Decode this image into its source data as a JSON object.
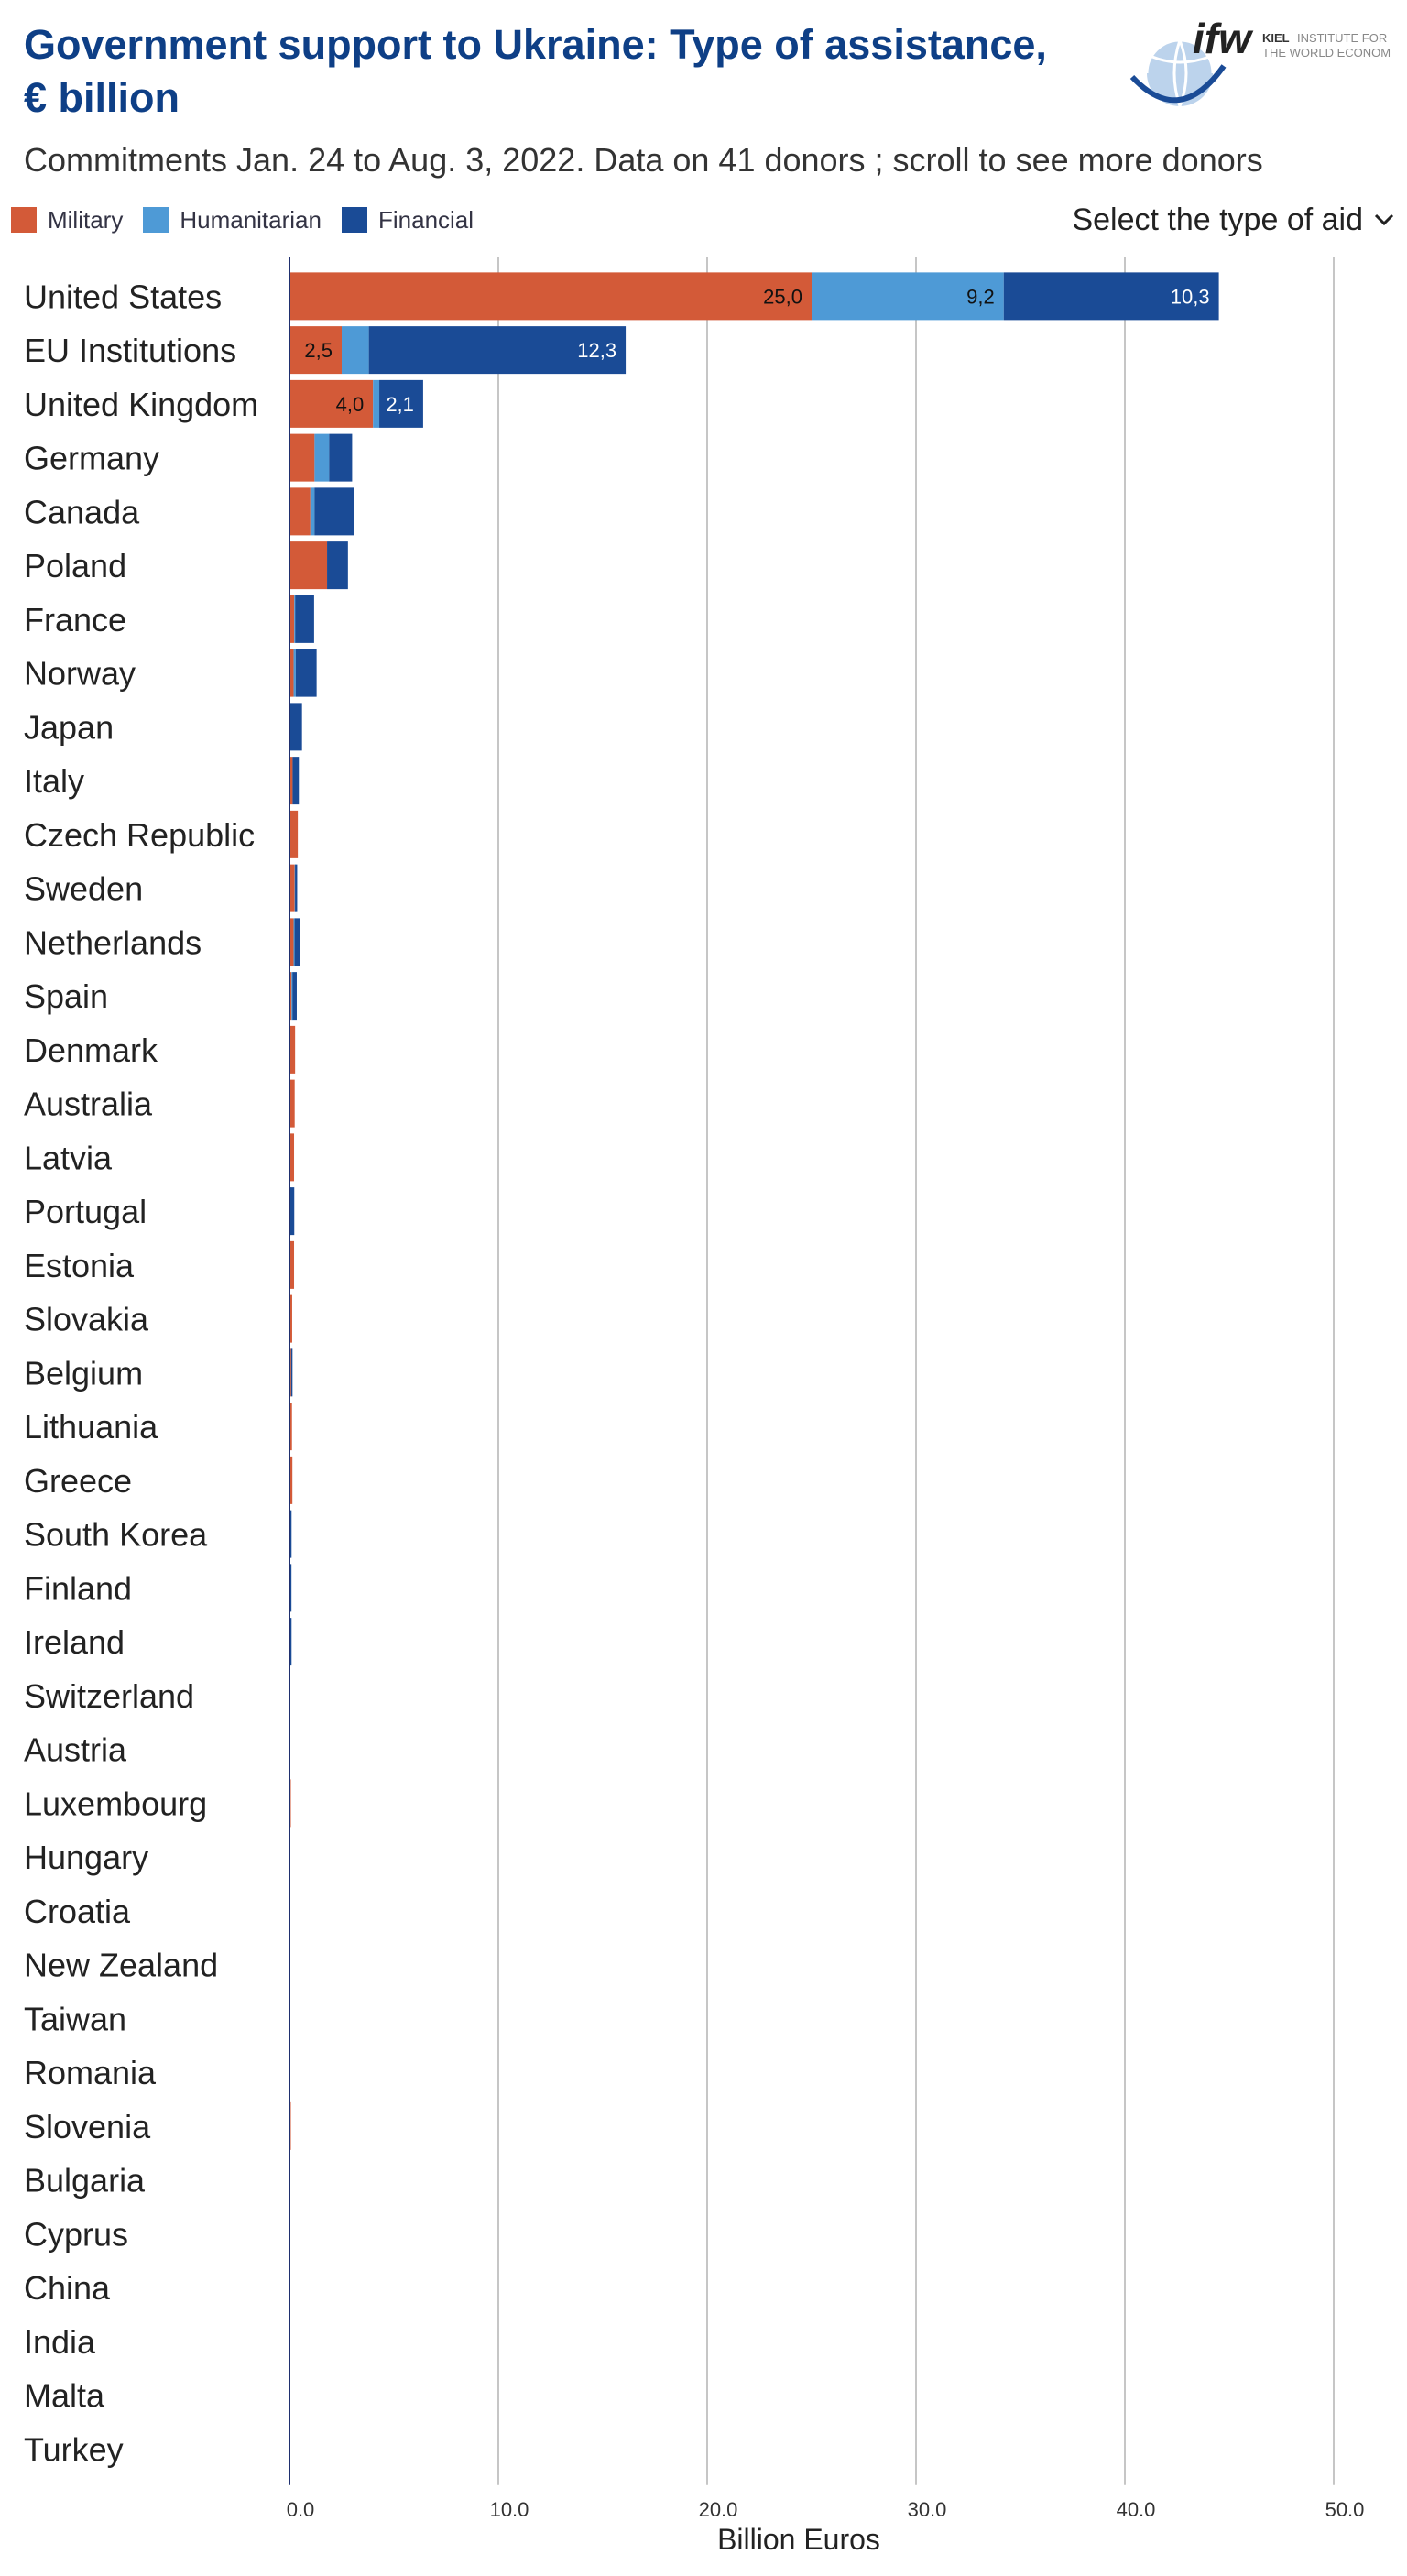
{
  "header": {
    "title": "Government support to Ukraine: Type of assistance, € billion",
    "subtitle": "Commitments Jan. 24 to Aug. 3, 2022. Data on 41 donors ; scroll to see more donors",
    "select_label": "Select the type of aid",
    "logo_mark": "ifw",
    "logo_text_bold": "KIEL",
    "logo_text_line1": "INSTITUTE FOR",
    "logo_text_line2": "THE WORLD ECONOMY"
  },
  "colors": {
    "military": "#d35a38",
    "humanitarian": "#4e9ad6",
    "financial": "#1a4b96",
    "title": "#0e3f86",
    "grid": "#b4b4b4",
    "axis": "#1f2f6e"
  },
  "chart_data": {
    "type": "bar",
    "orientation": "horizontal",
    "stacked": true,
    "title": "Government support to Ukraine: Type of assistance, € billion",
    "xlabel": "Billion Euros",
    "ylabel": "",
    "xlim": [
      0,
      50
    ],
    "xticks": [
      "0.0",
      "10.0",
      "20.0",
      "30.0",
      "40.0",
      "50.0"
    ],
    "grid": "vertical",
    "legend_position": "top-left",
    "categories": [
      "United States",
      "EU Institutions",
      "United Kingdom",
      "Germany",
      "Canada",
      "Poland",
      "France",
      "Norway",
      "Japan",
      "Italy",
      "Czech Republic",
      "Sweden",
      "Netherlands",
      "Spain",
      "Denmark",
      "Australia",
      "Latvia",
      "Portugal",
      "Estonia",
      "Slovakia",
      "Belgium",
      "Lithuania",
      "Greece",
      "South Korea",
      "Finland",
      "Ireland",
      "Switzerland",
      "Austria",
      "Luxembourg",
      "Hungary",
      "Croatia",
      "New Zealand",
      "Taiwan",
      "Romania",
      "Slovenia",
      "Bulgaria",
      "Cyprus",
      "China",
      "India",
      "Malta",
      "Turkey"
    ],
    "series": [
      {
        "name": "Military",
        "color": "#d35a38",
        "values": [
          25.0,
          2.5,
          4.0,
          1.2,
          1.0,
          1.8,
          0.23,
          0.2,
          0.0,
          0.15,
          0.4,
          0.25,
          0.2,
          0.1,
          0.27,
          0.25,
          0.22,
          0.03,
          0.22,
          0.13,
          0.08,
          0.12,
          0.14,
          0.0,
          0.03,
          0.0,
          0.0,
          0.0,
          0.02,
          0.0,
          0.0,
          0.0,
          0.0,
          0.0,
          0.01,
          0.0,
          0.0,
          0.0,
          0.0,
          0.0,
          0.0
        ]
      },
      {
        "name": "Humanitarian",
        "color": "#4e9ad6",
        "values": [
          9.2,
          1.3,
          0.3,
          0.7,
          0.2,
          0.0,
          0.05,
          0.1,
          0.0,
          0.0,
          0.0,
          0.02,
          0.05,
          0.05,
          0.0,
          0.0,
          0.0,
          0.0,
          0.0,
          0.0,
          0.0,
          0.0,
          0.0,
          0.0,
          0.0,
          0.0,
          0.0,
          0.0,
          0.0,
          0.0,
          0.0,
          0.0,
          0.0,
          0.0,
          0.0,
          0.0,
          0.0,
          0.0,
          0.0,
          0.0,
          0.0
        ]
      },
      {
        "name": "Financial",
        "color": "#1a4b96",
        "values": [
          10.3,
          12.3,
          2.1,
          1.1,
          1.9,
          1.0,
          0.9,
          1.0,
          0.6,
          0.3,
          0.0,
          0.1,
          0.25,
          0.2,
          0.0,
          0.0,
          0.0,
          0.2,
          0.0,
          0.0,
          0.05,
          0.0,
          0.0,
          0.1,
          0.03,
          0.1,
          0.0,
          0.0,
          0.0,
          0.0,
          0.0,
          0.0,
          0.0,
          0.0,
          0.0,
          0.0,
          0.0,
          0.0,
          0.0,
          0.0,
          0.0
        ]
      }
    ],
    "data_labels": [
      {
        "category": "United States",
        "series": "Military",
        "text": "25,0"
      },
      {
        "category": "United States",
        "series": "Humanitarian",
        "text": "9,2"
      },
      {
        "category": "United States",
        "series": "Financial",
        "text": "10,3"
      },
      {
        "category": "EU Institutions",
        "series": "Military",
        "text": "2,5"
      },
      {
        "category": "EU Institutions",
        "series": "Financial",
        "text": "12,3"
      },
      {
        "category": "United Kingdom",
        "series": "Military",
        "text": "4,0"
      },
      {
        "category": "United Kingdom",
        "series": "Financial",
        "text": "2,1"
      }
    ]
  }
}
